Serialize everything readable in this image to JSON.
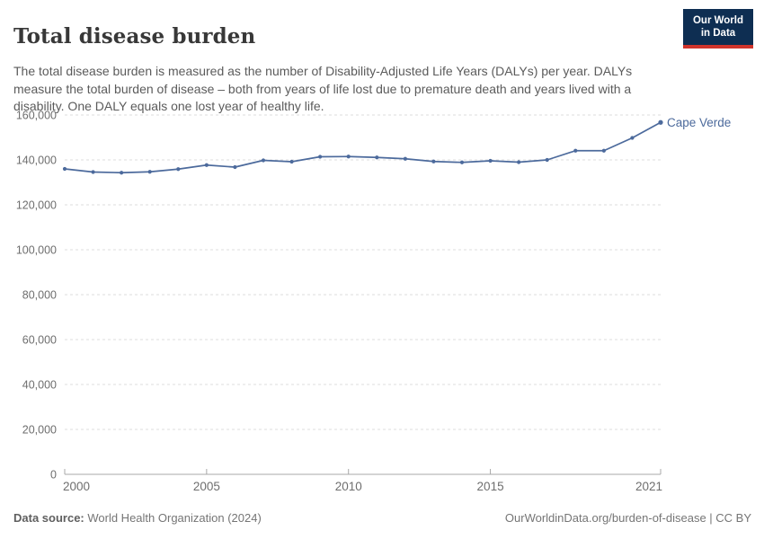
{
  "header": {
    "title": "Total disease burden",
    "subtitle": "The total disease burden is measured as the number of Disability-Adjusted Life Years (DALYs) per year. DALYs measure the total burden of disease – both from years of life lost due to premature death and years lived with a disability. One DALY equals one lost year of healthy life.",
    "logo": {
      "line1": "Our World",
      "line2": "in Data"
    }
  },
  "chart_data": {
    "type": "line",
    "title": "Total disease burden",
    "xlabel": "",
    "ylabel": "",
    "x": [
      2000,
      2001,
      2002,
      2003,
      2004,
      2005,
      2006,
      2007,
      2008,
      2009,
      2010,
      2011,
      2012,
      2013,
      2014,
      2015,
      2016,
      2017,
      2018,
      2019,
      2020,
      2021
    ],
    "series": [
      {
        "name": "Cape Verde",
        "color": "#4c6a9c",
        "values": [
          136000,
          134600,
          134300,
          134700,
          135900,
          137700,
          136800,
          139800,
          139200,
          141400,
          141500,
          141100,
          140500,
          139300,
          138900,
          139600,
          139000,
          140000,
          144100,
          144100,
          149800,
          156700
        ]
      }
    ],
    "end_label": "Cape Verde",
    "ylim": [
      0,
      160000
    ],
    "yticks": [
      0,
      20000,
      40000,
      60000,
      80000,
      100000,
      120000,
      140000,
      160000
    ],
    "xticks": [
      2000,
      2005,
      2010,
      2015,
      2021
    ],
    "grid": "horizontal-dashed",
    "legend_position": "end-of-line",
    "colors": {
      "grid": "#dcdcdc",
      "axis": "#a8a8a8",
      "tick_text": "#6e6e6e",
      "line": "#4c6a9c"
    }
  },
  "footer": {
    "datasource_label": "Data source:",
    "datasource_value": " World Health Organization (2024)",
    "right": "OurWorldinData.org/burden-of-disease | CC BY"
  }
}
